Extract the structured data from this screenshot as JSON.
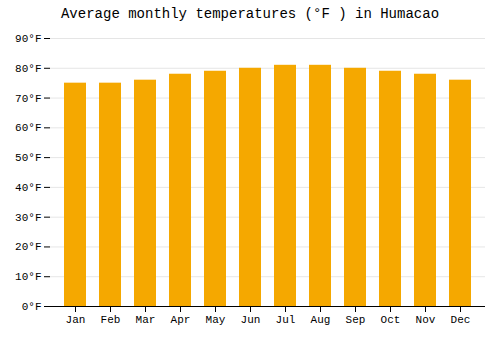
{
  "chart_data": {
    "type": "bar",
    "title": "Average monthly temperatures (°F ) in Humacao",
    "categories": [
      "Jan",
      "Feb",
      "Mar",
      "Apr",
      "May",
      "Jun",
      "Jul",
      "Aug",
      "Sep",
      "Oct",
      "Nov",
      "Dec"
    ],
    "values": [
      75,
      75,
      76,
      78,
      79,
      80,
      81,
      81,
      80,
      79,
      78,
      76
    ],
    "color": "#F5A800",
    "ylim": [
      0,
      90
    ],
    "yticks": [
      {
        "value": 0,
        "label": "0°F"
      },
      {
        "value": 10,
        "label": "10°F"
      },
      {
        "value": 20,
        "label": "20°F"
      },
      {
        "value": 30,
        "label": "30°F"
      },
      {
        "value": 40,
        "label": "40°F"
      },
      {
        "value": 50,
        "label": "50°F"
      },
      {
        "value": 60,
        "label": "60°F"
      },
      {
        "value": 70,
        "label": "70°F"
      },
      {
        "value": 80,
        "label": "80°F"
      },
      {
        "value": 90,
        "label": "90°F"
      }
    ],
    "grid": true
  }
}
